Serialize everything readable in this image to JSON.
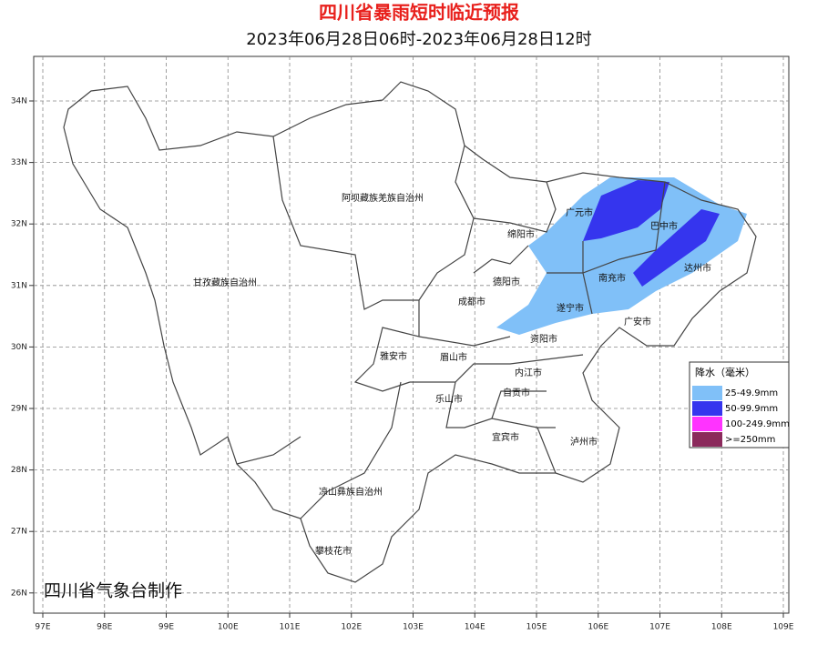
{
  "header": {
    "title": "四川省暴雨短时临近预报",
    "subtitle": "2023年06月28日06时-2023年06月28日12时"
  },
  "map": {
    "lon_ticks": [
      {
        "value": 97,
        "label": "97E"
      },
      {
        "value": 98,
        "label": "98E"
      },
      {
        "value": 99,
        "label": "99E"
      },
      {
        "value": 100,
        "label": "100E"
      },
      {
        "value": 101,
        "label": "101E"
      },
      {
        "value": 102,
        "label": "102E"
      },
      {
        "value": 103,
        "label": "103E"
      },
      {
        "value": 104,
        "label": "104E"
      },
      {
        "value": 105,
        "label": "105E"
      },
      {
        "value": 106,
        "label": "106E"
      },
      {
        "value": 107,
        "label": "107E"
      },
      {
        "value": 108,
        "label": "108E"
      },
      {
        "value": 109,
        "label": "109E"
      }
    ],
    "lat_ticks": [
      {
        "value": 34,
        "label": "34N"
      },
      {
        "value": 33,
        "label": "33N"
      },
      {
        "value": 32,
        "label": "32N"
      },
      {
        "value": 31,
        "label": "31N"
      },
      {
        "value": 30,
        "label": "30N"
      },
      {
        "value": 29,
        "label": "29N"
      },
      {
        "value": 28,
        "label": "28N"
      },
      {
        "value": 27,
        "label": "27N"
      },
      {
        "value": 26,
        "label": "26N"
      }
    ],
    "regions": [
      "阿坝藏族羌族自治州",
      "甘孜藏族自治州",
      "绵阳市",
      "广元市",
      "巴中市",
      "达州市",
      "南充市",
      "德阳市",
      "成都市",
      "遂宁市",
      "广安市",
      "资阳市",
      "雅安市",
      "眉山市",
      "内江市",
      "乐山市",
      "自贡市",
      "宜宾市",
      "泸州市",
      "凉山彝族自治州",
      "攀枝花市"
    ]
  },
  "legend": {
    "title": "降水（毫米）",
    "items": [
      {
        "label": "25-49.9mm",
        "color": "#80c0f8"
      },
      {
        "label": "50-99.9mm",
        "color": "#3535ee"
      },
      {
        "label": "100-249.9mm",
        "color": "#ff33ff"
      },
      {
        "label": ">=250mm",
        "color": "#8b2a5c"
      }
    ]
  },
  "footer": {
    "credit": "四川省气象台制作"
  }
}
